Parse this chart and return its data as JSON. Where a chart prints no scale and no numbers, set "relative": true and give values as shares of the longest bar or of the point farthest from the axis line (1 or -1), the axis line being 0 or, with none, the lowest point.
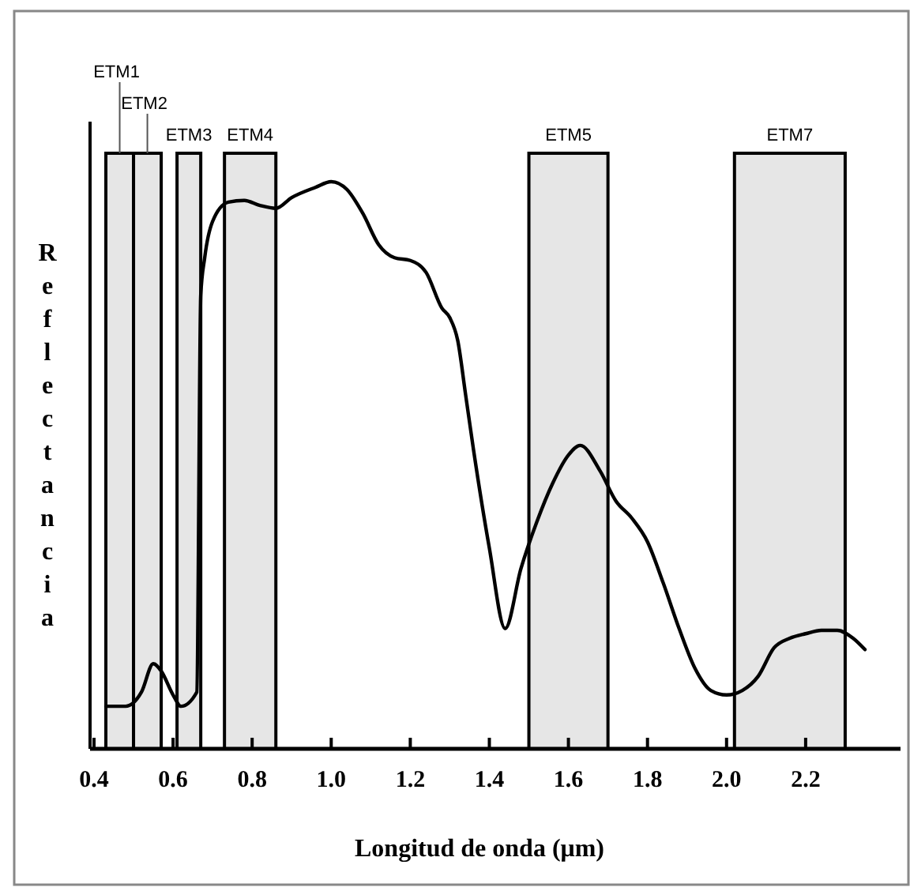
{
  "chart_data": {
    "type": "line",
    "xlabel": "Longitud de onda  (μm)",
    "ylabel": "Reflectancia",
    "relative": true,
    "marker": "none",
    "line_style": "solid",
    "xlim": [
      0.39,
      2.44
    ],
    "xticks": [
      {
        "value": 0.4,
        "label": "0.4"
      },
      {
        "value": 0.6,
        "label": "0.6"
      },
      {
        "value": 0.8,
        "label": "0.8"
      },
      {
        "value": 1.0,
        "label": "1.0"
      },
      {
        "value": 1.2,
        "label": "1.2"
      },
      {
        "value": 1.4,
        "label": "1.4"
      },
      {
        "value": 1.6,
        "label": "1.6"
      },
      {
        "value": 1.8,
        "label": "1.8"
      },
      {
        "value": 2.0,
        "label": "2.0"
      },
      {
        "value": 2.2,
        "label": "2.2"
      }
    ],
    "series": [
      {
        "color": "#000000",
        "x": [
          0.43,
          0.48,
          0.52,
          0.55,
          0.57,
          0.6,
          0.62,
          0.66,
          0.67,
          0.68,
          0.7,
          0.74,
          0.78,
          0.82,
          0.86,
          0.9,
          0.96,
          1.0,
          1.04,
          1.08,
          1.12,
          1.16,
          1.2,
          1.24,
          1.28,
          1.3,
          1.32,
          1.34,
          1.36,
          1.4,
          1.44,
          1.48,
          1.52,
          1.56,
          1.6,
          1.63,
          1.68,
          1.72,
          1.76,
          1.8,
          1.84,
          1.88,
          1.92,
          1.96,
          2.0,
          2.04,
          2.08,
          2.12,
          2.16,
          2.2,
          2.24,
          2.28,
          2.32,
          2.35
        ],
        "values": [
          0.075,
          0.075,
          0.1,
          0.15,
          0.137,
          0.095,
          0.075,
          0.1,
          0.8,
          0.866,
          0.93,
          0.964,
          0.967,
          0.958,
          0.953,
          0.972,
          0.99,
          1.0,
          0.986,
          0.944,
          0.889,
          0.866,
          0.861,
          0.84,
          0.777,
          0.76,
          0.72,
          0.624,
          0.527,
          0.354,
          0.212,
          0.318,
          0.4,
          0.468,
          0.518,
          0.535,
          0.49,
          0.437,
          0.407,
          0.365,
          0.292,
          0.212,
          0.142,
          0.103,
          0.095,
          0.103,
          0.128,
          0.178,
          0.195,
          0.203,
          0.209,
          0.209,
          0.195,
          0.175
        ]
      }
    ],
    "bands": [
      {
        "axis": "x",
        "from": 0.43,
        "to": 0.5,
        "label": "ETM1",
        "color": "#e6e6e6"
      },
      {
        "axis": "x",
        "from": 0.5,
        "to": 0.57,
        "label": "ETM2",
        "color": "#e6e6e6"
      },
      {
        "axis": "x",
        "from": 0.61,
        "to": 0.67,
        "label": "ETM3",
        "color": "#e6e6e6"
      },
      {
        "axis": "x",
        "from": 0.73,
        "to": 0.86,
        "label": "ETM4",
        "color": "#e6e6e6"
      },
      {
        "axis": "x",
        "from": 1.5,
        "to": 1.7,
        "label": "ETM5",
        "color": "#e6e6e6"
      },
      {
        "axis": "x",
        "from": 2.02,
        "to": 2.3,
        "label": "ETM7",
        "color": "#e6e6e6"
      }
    ]
  }
}
